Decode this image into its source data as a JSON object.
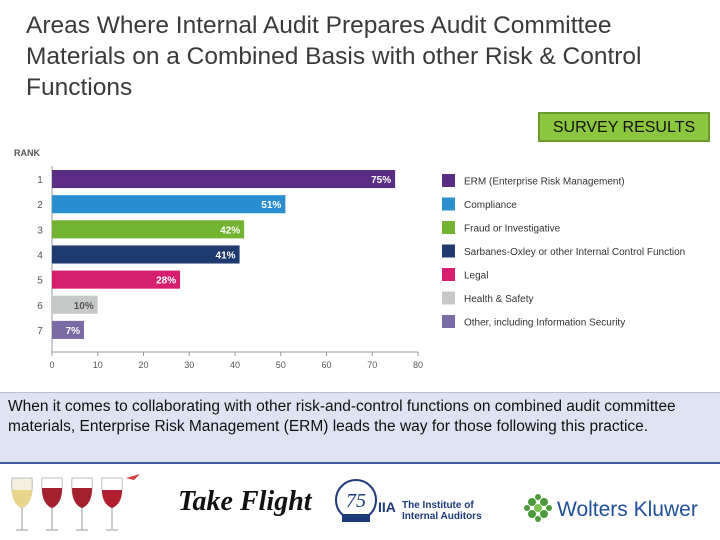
{
  "title": "Areas Where Internal Audit Prepares Audit Committee Materials on a Combined Basis with other Risk & Control Functions",
  "badge": "SURVEY RESULTS",
  "chart_data": {
    "type": "bar",
    "orientation": "horizontal",
    "ylabel": "RANK",
    "categories": [
      "1",
      "2",
      "3",
      "4",
      "5",
      "6",
      "7"
    ],
    "values": [
      75,
      51,
      42,
      41,
      28,
      10,
      7
    ],
    "value_labels": [
      "75%",
      "51%",
      "42%",
      "41%",
      "28%",
      "10%",
      "7%"
    ],
    "xlim": [
      0,
      80
    ],
    "xticks": [
      "0",
      "10",
      "20",
      "30",
      "40",
      "50",
      "60",
      "70",
      "80"
    ],
    "legend_position": "right",
    "legend": [
      {
        "label": "ERM (Enterprise Risk Management)",
        "color": "#5b2c83"
      },
      {
        "label": "Compliance",
        "color": "#2a8fd1"
      },
      {
        "label": "Fraud or Investigative",
        "color": "#72b331"
      },
      {
        "label": "Sarbanes-Oxley or other Internal Control Function",
        "color": "#1f3a6e"
      },
      {
        "label": "Legal",
        "color": "#d61f6e"
      },
      {
        "label": "Health & Safety",
        "color": "#c7c9c8"
      },
      {
        "label": "Other, including Information Security",
        "color": "#7a6aa6"
      }
    ]
  },
  "note": "When it comes to collaborating with other risk-and-control functions on combined audit committee materials, Enterprise Risk Management (ERM) leads the way for those following this practice.",
  "footer": {
    "take_flight": "Take Flight",
    "iia_line1": "The Institute of",
    "iia_line2": "Internal Auditors",
    "anniversary": "75",
    "wk": "Wolters Kluwer"
  }
}
